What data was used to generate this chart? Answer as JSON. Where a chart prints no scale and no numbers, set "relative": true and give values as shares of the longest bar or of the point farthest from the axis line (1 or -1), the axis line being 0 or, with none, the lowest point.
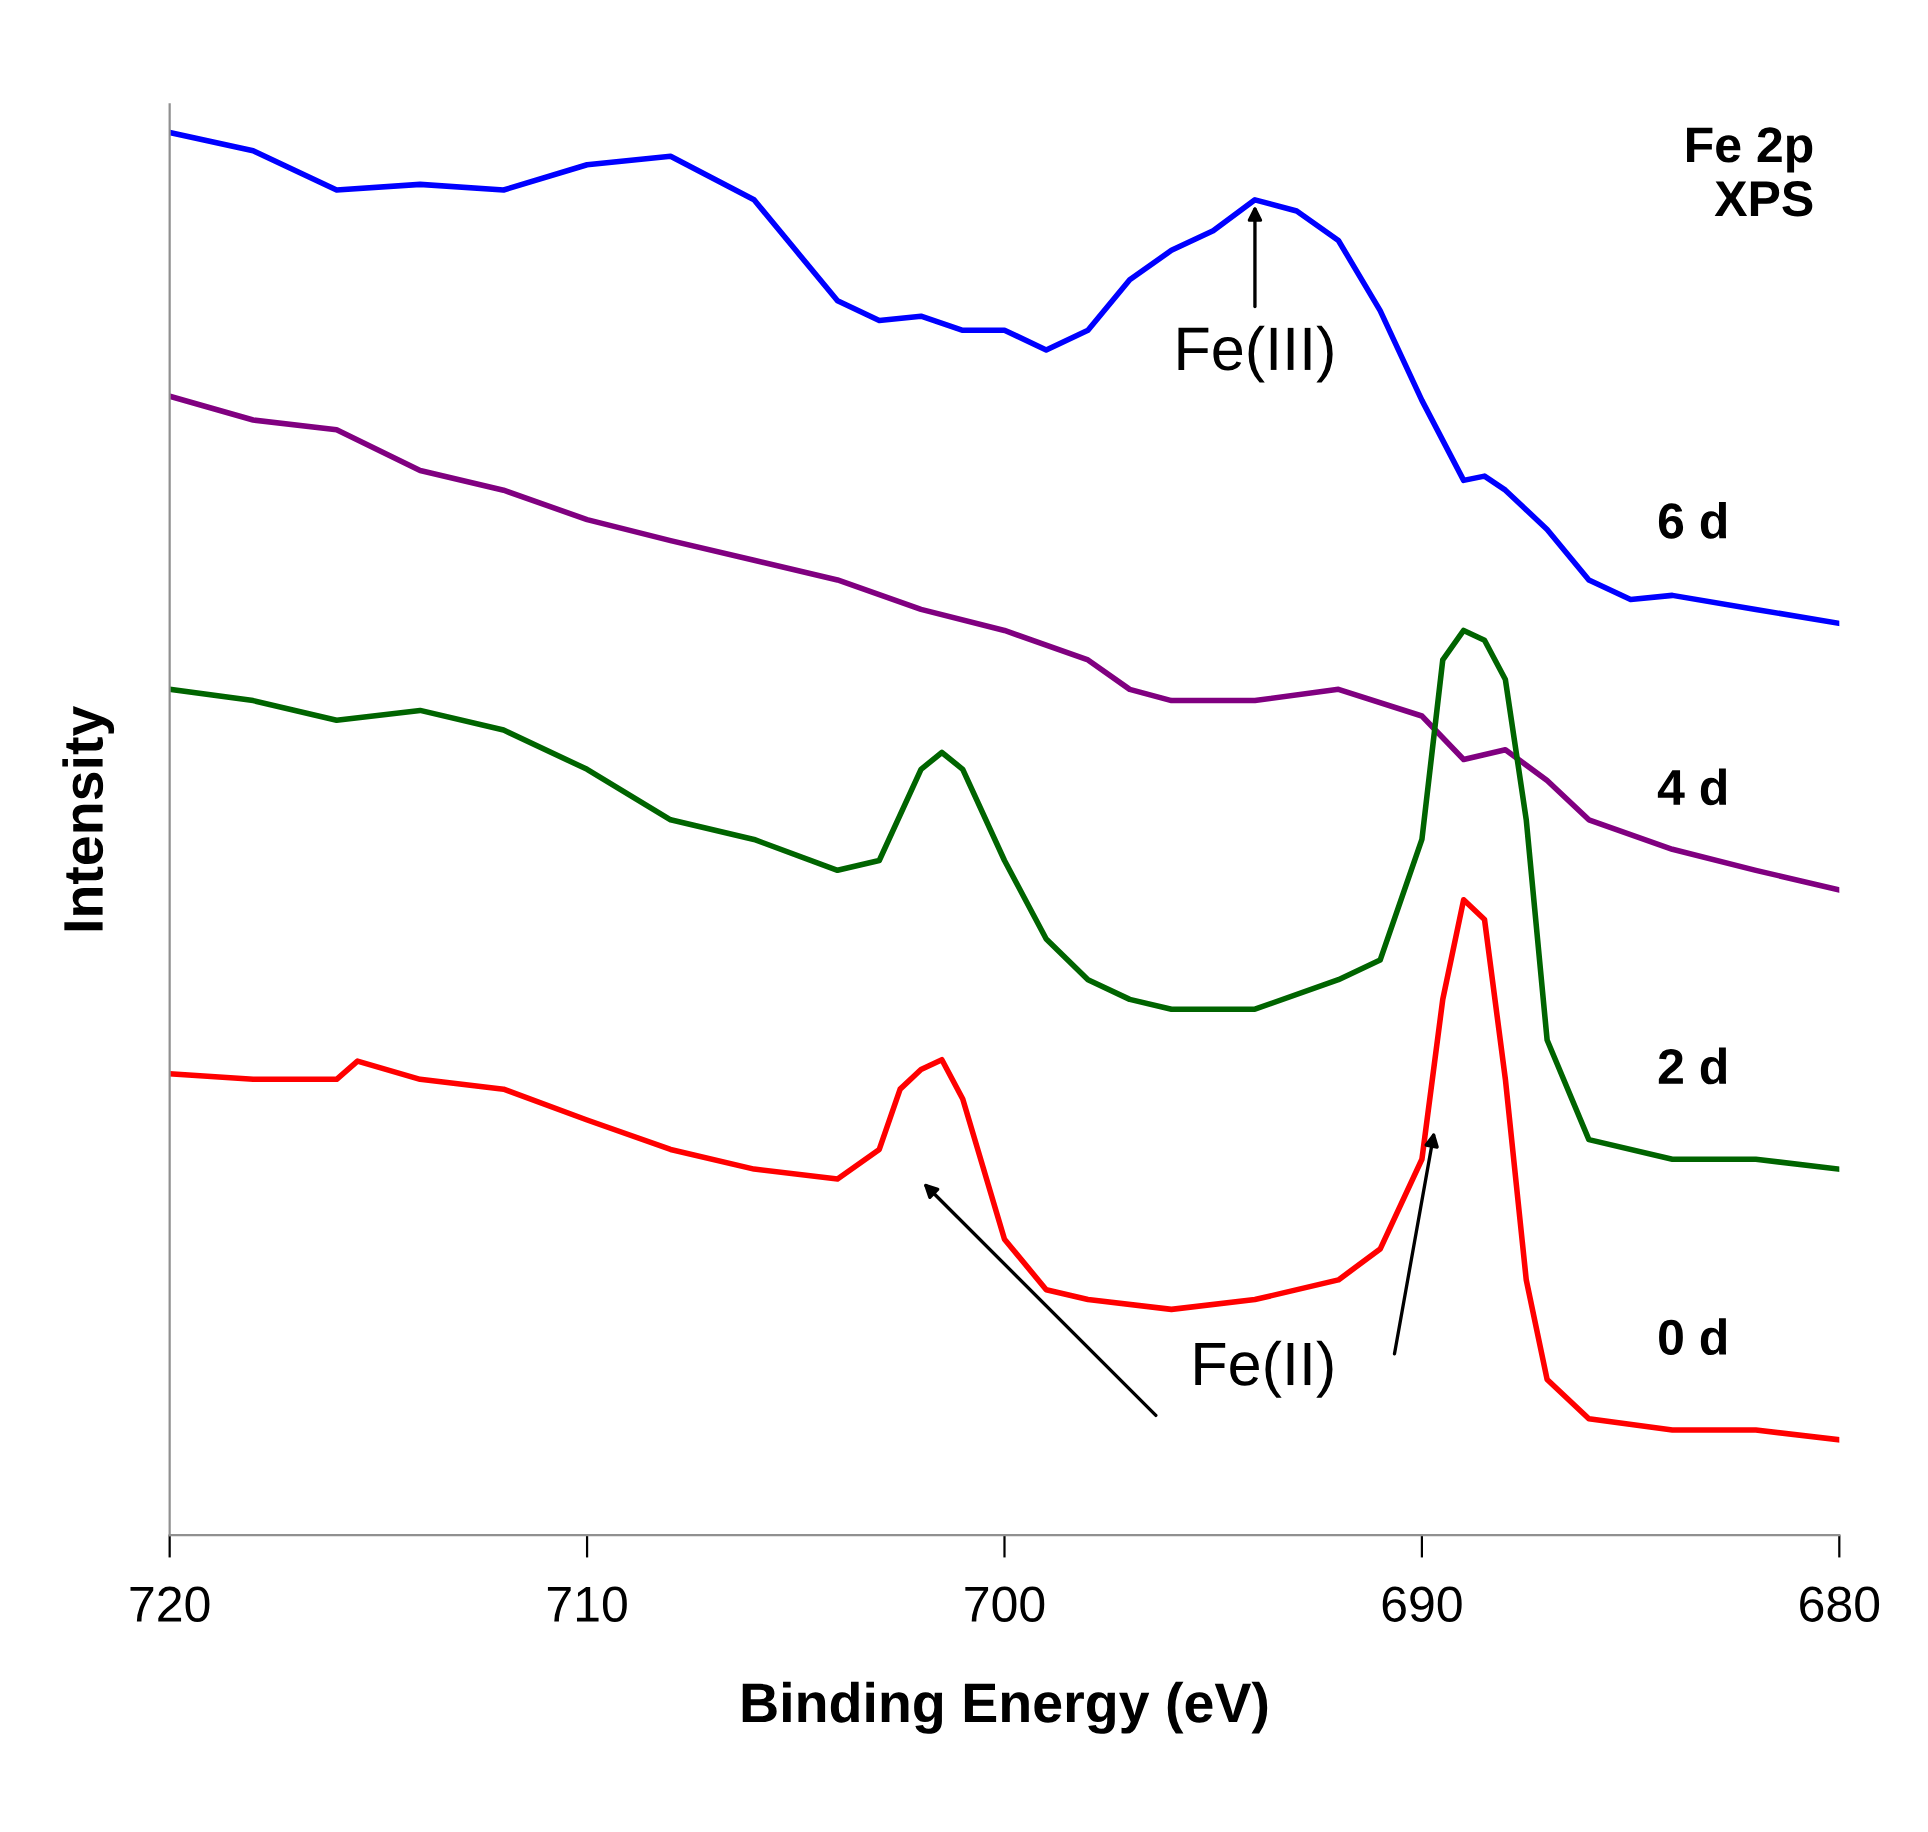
{
  "chart_data": {
    "type": "line",
    "relative": true,
    "xlabel": "Binding Energy (eV)",
    "ylabel": "Intensity",
    "xlim": [
      720,
      680
    ],
    "xticks": [
      720,
      710,
      700,
      690,
      680
    ],
    "grid": false,
    "legend": false,
    "marker": "none",
    "line_style": "solid",
    "annotations": [
      "Fe 2p\nXPS",
      {
        "text": "Fe(III)",
        "x": 694,
        "y": 0.952
      },
      "Fe(II)"
    ],
    "series": [
      {
        "name": "6 d",
        "color": "#0000ff",
        "x": [
          720,
          718,
          716,
          714,
          712,
          710,
          708,
          706,
          705,
          704,
          703,
          702,
          701,
          700,
          699,
          698,
          697,
          696,
          695,
          694,
          693,
          692,
          691,
          690,
          689,
          688.5,
          688,
          687,
          686,
          685,
          684,
          682,
          680
        ],
        "values": [
          1.0,
          0.987,
          0.959,
          0.963,
          0.959,
          0.977,
          0.983,
          0.952,
          0.916,
          0.88,
          0.866,
          0.869,
          0.859,
          0.859,
          0.845,
          0.859,
          0.895,
          0.916,
          0.93,
          0.952,
          0.944,
          0.923,
          0.873,
          0.809,
          0.752,
          0.755,
          0.745,
          0.717,
          0.681,
          0.667,
          0.67,
          0.66,
          0.65
        ]
      },
      {
        "name": "4 d",
        "color": "#800080",
        "x": [
          720,
          718,
          716,
          714,
          712,
          710,
          708,
          706,
          704,
          702,
          700,
          698,
          697,
          696,
          694,
          692,
          690,
          689,
          688,
          687,
          686,
          684,
          682,
          680
        ],
        "values": [
          0.812,
          0.795,
          0.788,
          0.759,
          0.745,
          0.724,
          0.709,
          0.695,
          0.681,
          0.66,
          0.645,
          0.624,
          0.603,
          0.595,
          0.595,
          0.603,
          0.584,
          0.553,
          0.56,
          0.538,
          0.51,
          0.489,
          0.474,
          0.46
        ]
      },
      {
        "name": "2 d",
        "color": "#006400",
        "x": [
          720,
          718,
          716,
          714,
          712,
          710,
          708,
          706,
          704,
          703,
          702,
          701.5,
          701,
          700,
          699,
          698,
          697,
          696,
          694,
          692,
          691,
          690,
          689.5,
          689,
          688.5,
          688,
          687.5,
          687,
          686,
          684,
          682,
          680
        ],
        "values": [
          0.603,
          0.595,
          0.581,
          0.588,
          0.574,
          0.546,
          0.51,
          0.496,
          0.474,
          0.481,
          0.546,
          0.558,
          0.546,
          0.481,
          0.425,
          0.396,
          0.382,
          0.375,
          0.375,
          0.396,
          0.41,
          0.496,
          0.624,
          0.645,
          0.638,
          0.61,
          0.51,
          0.353,
          0.282,
          0.268,
          0.268,
          0.261
        ]
      },
      {
        "name": "0 d",
        "color": "#ff0000",
        "x": [
          720,
          718,
          716,
          715.5,
          714,
          712,
          710,
          708,
          706,
          704,
          703,
          702.5,
          702,
          701.5,
          701,
          700,
          699,
          698,
          696,
          694,
          692,
          691,
          690,
          689.5,
          689,
          688.5,
          688,
          687.5,
          687,
          686,
          684,
          682,
          680
        ],
        "values": [
          0.329,
          0.325,
          0.325,
          0.338,
          0.325,
          0.318,
          0.296,
          0.275,
          0.261,
          0.254,
          0.275,
          0.318,
          0.332,
          0.339,
          0.311,
          0.211,
          0.175,
          0.168,
          0.161,
          0.168,
          0.182,
          0.204,
          0.268,
          0.382,
          0.453,
          0.439,
          0.325,
          0.182,
          0.111,
          0.083,
          0.075,
          0.075,
          0.068
        ]
      }
    ]
  }
}
